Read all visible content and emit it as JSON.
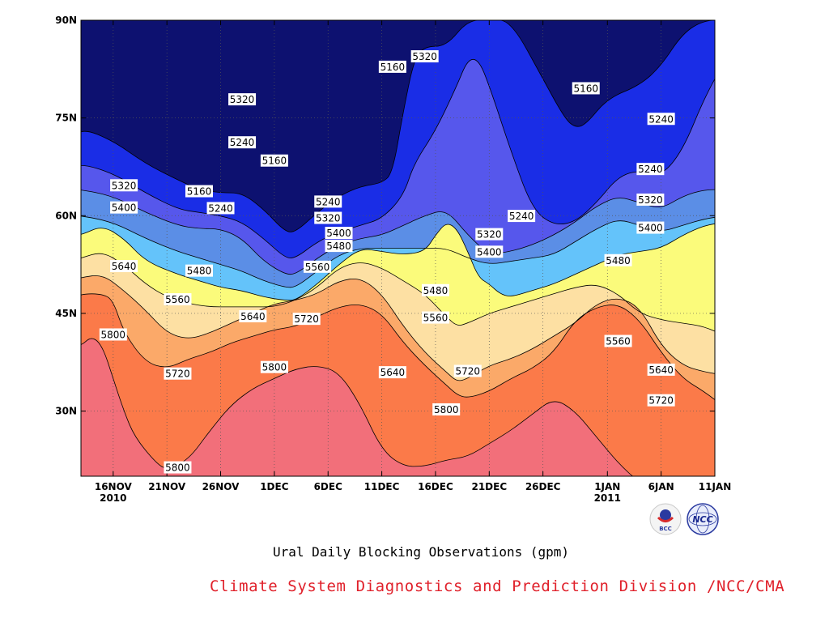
{
  "chart_data": {
    "type": "heatmap",
    "subtype": "time-latitude contour (filled) of geopotential height",
    "title": "Ural Daily Blocking Observations (gpm)",
    "units": "gpm",
    "x_axis": {
      "kind": "date",
      "range": [
        "2010-11-13",
        "2011-01-11"
      ],
      "ticks": [
        {
          "date": "2010-11-16",
          "label": "16NOV",
          "sublabel": "2010"
        },
        {
          "date": "2010-11-21",
          "label": "21NOV"
        },
        {
          "date": "2010-11-26",
          "label": "26NOV"
        },
        {
          "date": "2010-12-01",
          "label": "1DEC"
        },
        {
          "date": "2010-12-06",
          "label": "6DEC"
        },
        {
          "date": "2010-12-11",
          "label": "11DEC"
        },
        {
          "date": "2010-12-16",
          "label": "16DEC"
        },
        {
          "date": "2010-12-21",
          "label": "21DEC"
        },
        {
          "date": "2010-12-26",
          "label": "26DEC"
        },
        {
          "date": "2011-01-01",
          "label": "1JAN",
          "sublabel": "2011"
        },
        {
          "date": "2011-01-06",
          "label": "6JAN"
        },
        {
          "date": "2011-01-11",
          "label": "11JAN"
        }
      ]
    },
    "y_axis": {
      "kind": "latitude",
      "range": [
        20,
        90
      ],
      "ticks": [
        {
          "value": 30,
          "label": "30N"
        },
        {
          "value": 45,
          "label": "45N"
        },
        {
          "value": 60,
          "label": "60N"
        },
        {
          "value": 75,
          "label": "75N"
        },
        {
          "value": 90,
          "label": "90N"
        }
      ]
    },
    "grid": true,
    "contour_levels": [
      5160,
      5240,
      5320,
      5400,
      5480,
      5560,
      5640,
      5720,
      5800
    ],
    "fill_colors": {
      "below_5160": "#0d1170",
      "5160_5240": "#1a2de6",
      "5240_5320": "#5657ec",
      "5320_5400": "#5b8ee6",
      "5400_5480": "#64c3fa",
      "5480_5560": "#fbfb7b",
      "5560_5640": "#fde0a3",
      "5640_5720": "#fba969",
      "5720_5800": "#fb7a49",
      "above_5800": "#f26f7a"
    },
    "contour_labels": [
      {
        "value": "5160",
        "date": "2010-12-12",
        "lat": 82.8
      },
      {
        "value": "5320",
        "date": "2010-12-15",
        "lat": 84.4
      },
      {
        "value": "5320",
        "date": "2010-11-28",
        "lat": 77.8
      },
      {
        "value": "5240",
        "date": "2010-11-28",
        "lat": 71.2
      },
      {
        "value": "5160",
        "date": "2010-12-01",
        "lat": 68.4
      },
      {
        "value": "5160",
        "date": "2010-12-30",
        "lat": 79.5
      },
      {
        "value": "5240",
        "date": "2011-01-06",
        "lat": 74.8
      },
      {
        "value": "5320",
        "date": "2010-11-17",
        "lat": 64.6
      },
      {
        "value": "5160",
        "date": "2010-11-24",
        "lat": 63.7
      },
      {
        "value": "5400",
        "date": "2010-11-17",
        "lat": 61.2
      },
      {
        "value": "5240",
        "date": "2010-11-26",
        "lat": 61.1
      },
      {
        "value": "5240",
        "date": "2010-12-06",
        "lat": 62.1
      },
      {
        "value": "5320",
        "date": "2010-12-06",
        "lat": 59.6
      },
      {
        "value": "5400",
        "date": "2010-12-07",
        "lat": 57.3
      },
      {
        "value": "5480",
        "date": "2010-12-07",
        "lat": 55.3
      },
      {
        "value": "5240",
        "date": "2010-12-24",
        "lat": 59.9
      },
      {
        "value": "5320",
        "date": "2010-12-21",
        "lat": 57.1
      },
      {
        "value": "5400",
        "date": "2010-12-21",
        "lat": 54.4
      },
      {
        "value": "5240",
        "date": "2011-01-05",
        "lat": 67.1
      },
      {
        "value": "5320",
        "date": "2011-01-05",
        "lat": 62.4
      },
      {
        "value": "5400",
        "date": "2011-01-05",
        "lat": 58.1
      },
      {
        "value": "5480",
        "date": "2011-01-02",
        "lat": 53.1
      },
      {
        "value": "5640",
        "date": "2010-11-17",
        "lat": 52.2
      },
      {
        "value": "5480",
        "date": "2010-11-24",
        "lat": 51.5
      },
      {
        "value": "5560",
        "date": "2010-12-05",
        "lat": 52.1
      },
      {
        "value": "5480",
        "date": "2010-12-16",
        "lat": 48.5
      },
      {
        "value": "5560",
        "date": "2010-11-22",
        "lat": 47.1
      },
      {
        "value": "5640",
        "date": "2010-11-29",
        "lat": 44.5
      },
      {
        "value": "5720",
        "date": "2010-12-04",
        "lat": 44.1
      },
      {
        "value": "5560",
        "date": "2010-12-16",
        "lat": 44.3
      },
      {
        "value": "5800",
        "date": "2010-11-16",
        "lat": 41.7
      },
      {
        "value": "5800",
        "date": "2010-12-01",
        "lat": 36.7
      },
      {
        "value": "5720",
        "date": "2010-11-22",
        "lat": 35.7
      },
      {
        "value": "5640",
        "date": "2010-12-12",
        "lat": 35.9
      },
      {
        "value": "5720",
        "date": "2010-12-19",
        "lat": 36.1
      },
      {
        "value": "5560",
        "date": "2011-01-02",
        "lat": 40.7
      },
      {
        "value": "5640",
        "date": "2011-01-06",
        "lat": 36.3
      },
      {
        "value": "5720",
        "date": "2011-01-06",
        "lat": 31.6
      },
      {
        "value": "5800",
        "date": "2010-12-17",
        "lat": 30.2
      },
      {
        "value": "5800",
        "date": "2010-11-22",
        "lat": 21.3
      }
    ]
  },
  "subtitle": "Ural Daily Blocking Observations (gpm)",
  "credit": "Climate System Diagnostics and Prediction Division /NCC/CMA",
  "logos": {
    "bcc": {
      "name": "bcc-logo",
      "text": "BCC"
    },
    "ncc": {
      "name": "ncc-logo",
      "text": "NCC"
    }
  },
  "colors": {
    "credit_text": "#e0202a",
    "frame": "#000000"
  }
}
